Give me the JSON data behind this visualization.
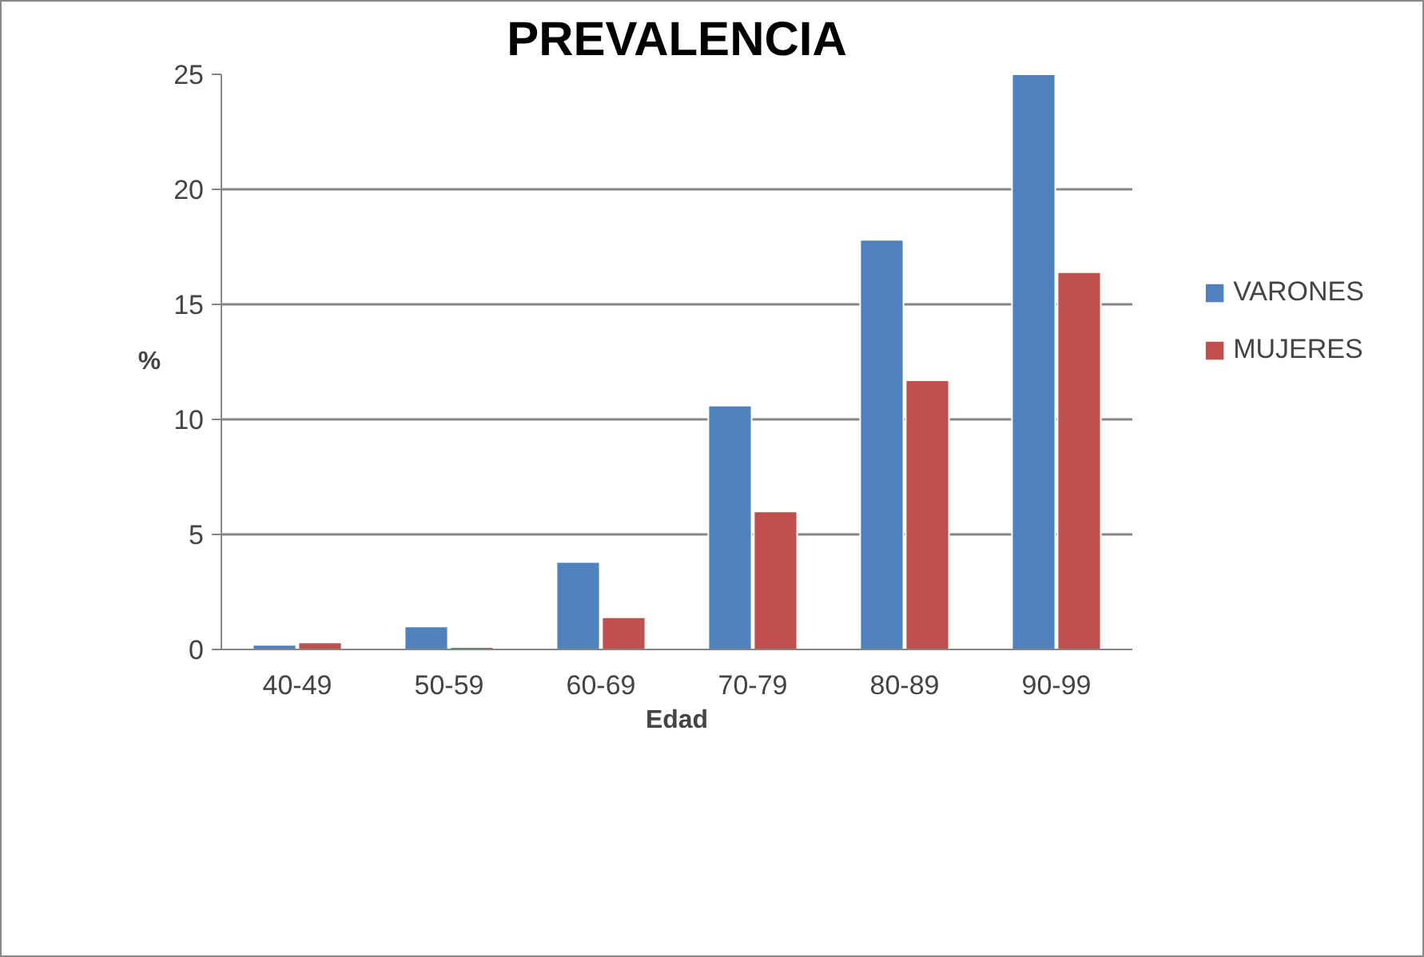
{
  "chart_data": {
    "type": "bar",
    "title": "PREVALENCIA",
    "xlabel": "Edad",
    "ylabel": "%",
    "categories": [
      "40-49",
      "50-59",
      "60-69",
      "70-79",
      "80-89",
      "90-99"
    ],
    "series": [
      {
        "name": "VARONES",
        "color": "#4f81bd",
        "values": [
          0.2,
          1.0,
          3.8,
          10.6,
          17.8,
          25.0
        ]
      },
      {
        "name": "MUJERES",
        "color": "#c0504d",
        "values": [
          0.3,
          0.1,
          1.4,
          6.0,
          11.7,
          16.4
        ]
      }
    ],
    "ylim": [
      0,
      25
    ],
    "yticks": [
      0,
      5,
      10,
      15,
      20,
      25
    ],
    "grid": "y",
    "legend": "right"
  }
}
